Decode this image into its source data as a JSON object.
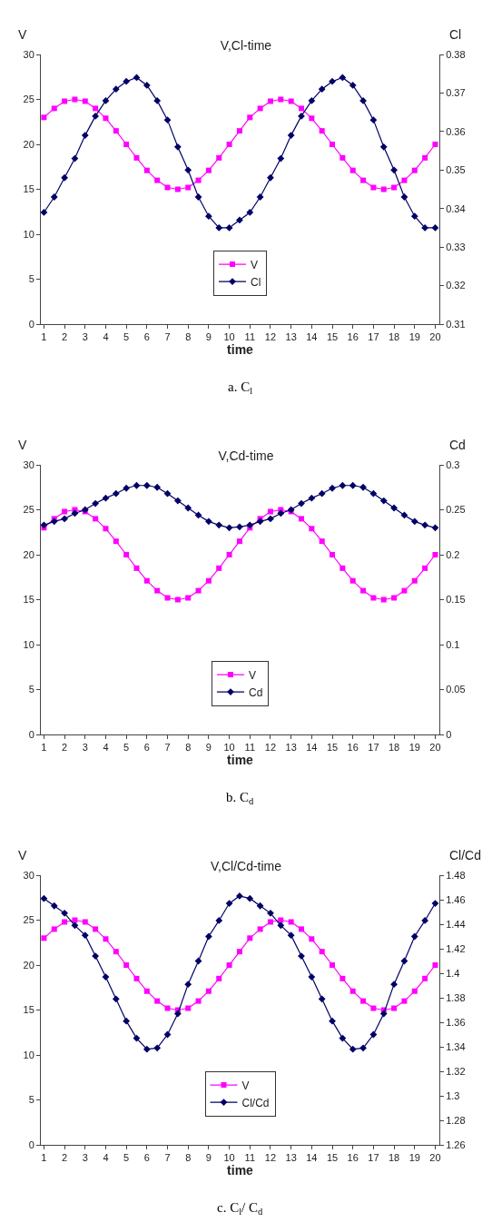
{
  "chart_data": [
    {
      "type": "line",
      "title": "V,Cl-time",
      "xlabel": "time",
      "ylabel": "V",
      "y2label": "Cl",
      "legend": "center",
      "grid": false,
      "annotations": [
        "a. C$_{l}$"
      ],
      "x": [
        1,
        1.5,
        2,
        2.5,
        3,
        3.5,
        4,
        4.5,
        5,
        5.5,
        6,
        6.5,
        7,
        7.5,
        8,
        8.5,
        9,
        9.5,
        10,
        10.5,
        11,
        11.5,
        12,
        12.5,
        13,
        13.5,
        14,
        14.5,
        15,
        15.5,
        16,
        16.5,
        17,
        17.5,
        18,
        18.5,
        19,
        19.5,
        20
      ],
      "xlim": [
        0.85,
        20.2
      ],
      "xticks": [
        1,
        2,
        3,
        4,
        5,
        6,
        7,
        8,
        9,
        10,
        11,
        12,
        13,
        14,
        15,
        16,
        17,
        18,
        19,
        20
      ],
      "ylim": [
        0,
        30
      ],
      "yticks": [
        0,
        5,
        10,
        15,
        20,
        25,
        30
      ],
      "y2lim": [
        0.31,
        0.38
      ],
      "y2ticks": [
        0.31,
        0.32,
        0.33,
        0.34,
        0.35,
        0.36,
        0.37,
        0.38
      ],
      "series": [
        {
          "name": "V",
          "color": "#ff00ff",
          "marker": "square",
          "values": [
            23,
            24,
            24.8,
            25,
            24.8,
            24,
            22.9,
            21.5,
            20,
            18.5,
            17.1,
            16,
            15.2,
            15,
            15.2,
            16,
            17.1,
            18.5,
            20,
            21.5,
            23,
            24,
            24.8,
            25,
            24.8,
            24,
            22.9,
            21.5,
            20,
            18.5,
            17.1,
            16,
            15.2,
            15,
            15.2,
            16,
            17.1,
            18.5,
            20
          ]
        },
        {
          "name": "Cl",
          "color": "#000066",
          "marker": "diamond",
          "axis": "y2",
          "values": [
            0.339,
            0.343,
            0.348,
            0.353,
            0.359,
            0.364,
            0.368,
            0.371,
            0.373,
            0.374,
            0.372,
            0.368,
            0.363,
            0.356,
            0.35,
            0.343,
            0.338,
            0.335,
            0.335,
            0.337,
            0.339,
            0.343,
            0.348,
            0.353,
            0.359,
            0.364,
            0.368,
            0.371,
            0.373,
            0.374,
            0.372,
            0.368,
            0.363,
            0.356,
            0.35,
            0.343,
            0.338,
            0.335,
            0.335
          ]
        }
      ]
    },
    {
      "type": "line",
      "title": "V,Cd-time",
      "xlabel": "time",
      "ylabel": "V",
      "y2label": "Cd",
      "legend": "center",
      "grid": false,
      "annotations": [
        "b. C$_{d}$"
      ],
      "x": [
        1,
        1.5,
        2,
        2.5,
        3,
        3.5,
        4,
        4.5,
        5,
        5.5,
        6,
        6.5,
        7,
        7.5,
        8,
        8.5,
        9,
        9.5,
        10,
        10.5,
        11,
        11.5,
        12,
        12.5,
        13,
        13.5,
        14,
        14.5,
        15,
        15.5,
        16,
        16.5,
        17,
        17.5,
        18,
        18.5,
        19,
        19.5,
        20
      ],
      "xlim": [
        0.85,
        20.2
      ],
      "xticks": [
        1,
        2,
        3,
        4,
        5,
        6,
        7,
        8,
        9,
        10,
        11,
        12,
        13,
        14,
        15,
        16,
        17,
        18,
        19,
        20
      ],
      "ylim": [
        0,
        30
      ],
      "yticks": [
        0,
        5,
        10,
        15,
        20,
        25,
        30
      ],
      "y2lim": [
        0,
        0.3
      ],
      "y2ticks": [
        0,
        0.05,
        0.1,
        0.15,
        0.2,
        0.25,
        0.3
      ],
      "series": [
        {
          "name": "V",
          "color": "#ff00ff",
          "marker": "square",
          "values": [
            23,
            24,
            24.8,
            25,
            24.8,
            24,
            22.9,
            21.5,
            20,
            18.5,
            17.1,
            16,
            15.2,
            15,
            15.2,
            16,
            17.1,
            18.5,
            20,
            21.5,
            23,
            24,
            24.8,
            25,
            24.8,
            24,
            22.9,
            21.5,
            20,
            18.5,
            17.1,
            16,
            15.2,
            15,
            15.2,
            16,
            17.1,
            18.5,
            20
          ]
        },
        {
          "name": "Cd",
          "color": "#000066",
          "marker": "diamond",
          "axis": "y2",
          "values": [
            0.233,
            0.237,
            0.24,
            0.246,
            0.25,
            0.257,
            0.263,
            0.268,
            0.274,
            0.277,
            0.277,
            0.275,
            0.268,
            0.26,
            0.252,
            0.244,
            0.237,
            0.233,
            0.23,
            0.231,
            0.233,
            0.237,
            0.24,
            0.246,
            0.25,
            0.257,
            0.263,
            0.268,
            0.274,
            0.277,
            0.277,
            0.275,
            0.268,
            0.26,
            0.252,
            0.244,
            0.237,
            0.233,
            0.23
          ]
        }
      ]
    },
    {
      "type": "line",
      "title": "V,Cl/Cd-time",
      "xlabel": "time",
      "ylabel": "V",
      "y2label": "Cl/Cd",
      "legend": "center",
      "grid": false,
      "annotations": [
        "c. C$_{l}$/ C$_{d}$"
      ],
      "x": [
        1,
        1.5,
        2,
        2.5,
        3,
        3.5,
        4,
        4.5,
        5,
        5.5,
        6,
        6.5,
        7,
        7.5,
        8,
        8.5,
        9,
        9.5,
        10,
        10.5,
        11,
        11.5,
        12,
        12.5,
        13,
        13.5,
        14,
        14.5,
        15,
        15.5,
        16,
        16.5,
        17,
        17.5,
        18,
        18.5,
        19,
        19.5,
        20
      ],
      "xlim": [
        0.85,
        20.2
      ],
      "xticks": [
        1,
        2,
        3,
        4,
        5,
        6,
        7,
        8,
        9,
        10,
        11,
        12,
        13,
        14,
        15,
        16,
        17,
        18,
        19,
        20
      ],
      "ylim": [
        0,
        30
      ],
      "yticks": [
        0,
        5,
        10,
        15,
        20,
        25,
        30
      ],
      "y2lim": [
        1.26,
        1.48
      ],
      "y2ticks": [
        1.26,
        1.28,
        1.3,
        1.32,
        1.34,
        1.36,
        1.38,
        1.4,
        1.42,
        1.44,
        1.46,
        1.48
      ],
      "series": [
        {
          "name": "V",
          "color": "#ff00ff",
          "marker": "square",
          "values": [
            23,
            24,
            24.8,
            25,
            24.8,
            24,
            22.9,
            21.5,
            20,
            18.5,
            17.1,
            16,
            15.2,
            15,
            15.2,
            16,
            17.1,
            18.5,
            20,
            21.5,
            23,
            24,
            24.8,
            25,
            24.8,
            24,
            22.9,
            21.5,
            20,
            18.5,
            17.1,
            16,
            15.2,
            15,
            15.2,
            16,
            17.1,
            18.5,
            20
          ]
        },
        {
          "name": "Cl/Cd",
          "color": "#000066",
          "marker": "diamond",
          "axis": "y2",
          "values": [
            1.461,
            1.455,
            1.449,
            1.439,
            1.431,
            1.414,
            1.397,
            1.379,
            1.361,
            1.347,
            1.338,
            1.339,
            1.35,
            1.367,
            1.391,
            1.41,
            1.43,
            1.443,
            1.457,
            1.463,
            1.461,
            1.455,
            1.449,
            1.439,
            1.431,
            1.414,
            1.397,
            1.379,
            1.361,
            1.347,
            1.338,
            1.339,
            1.35,
            1.367,
            1.391,
            1.41,
            1.43,
            1.443,
            1.457
          ]
        }
      ]
    }
  ]
}
